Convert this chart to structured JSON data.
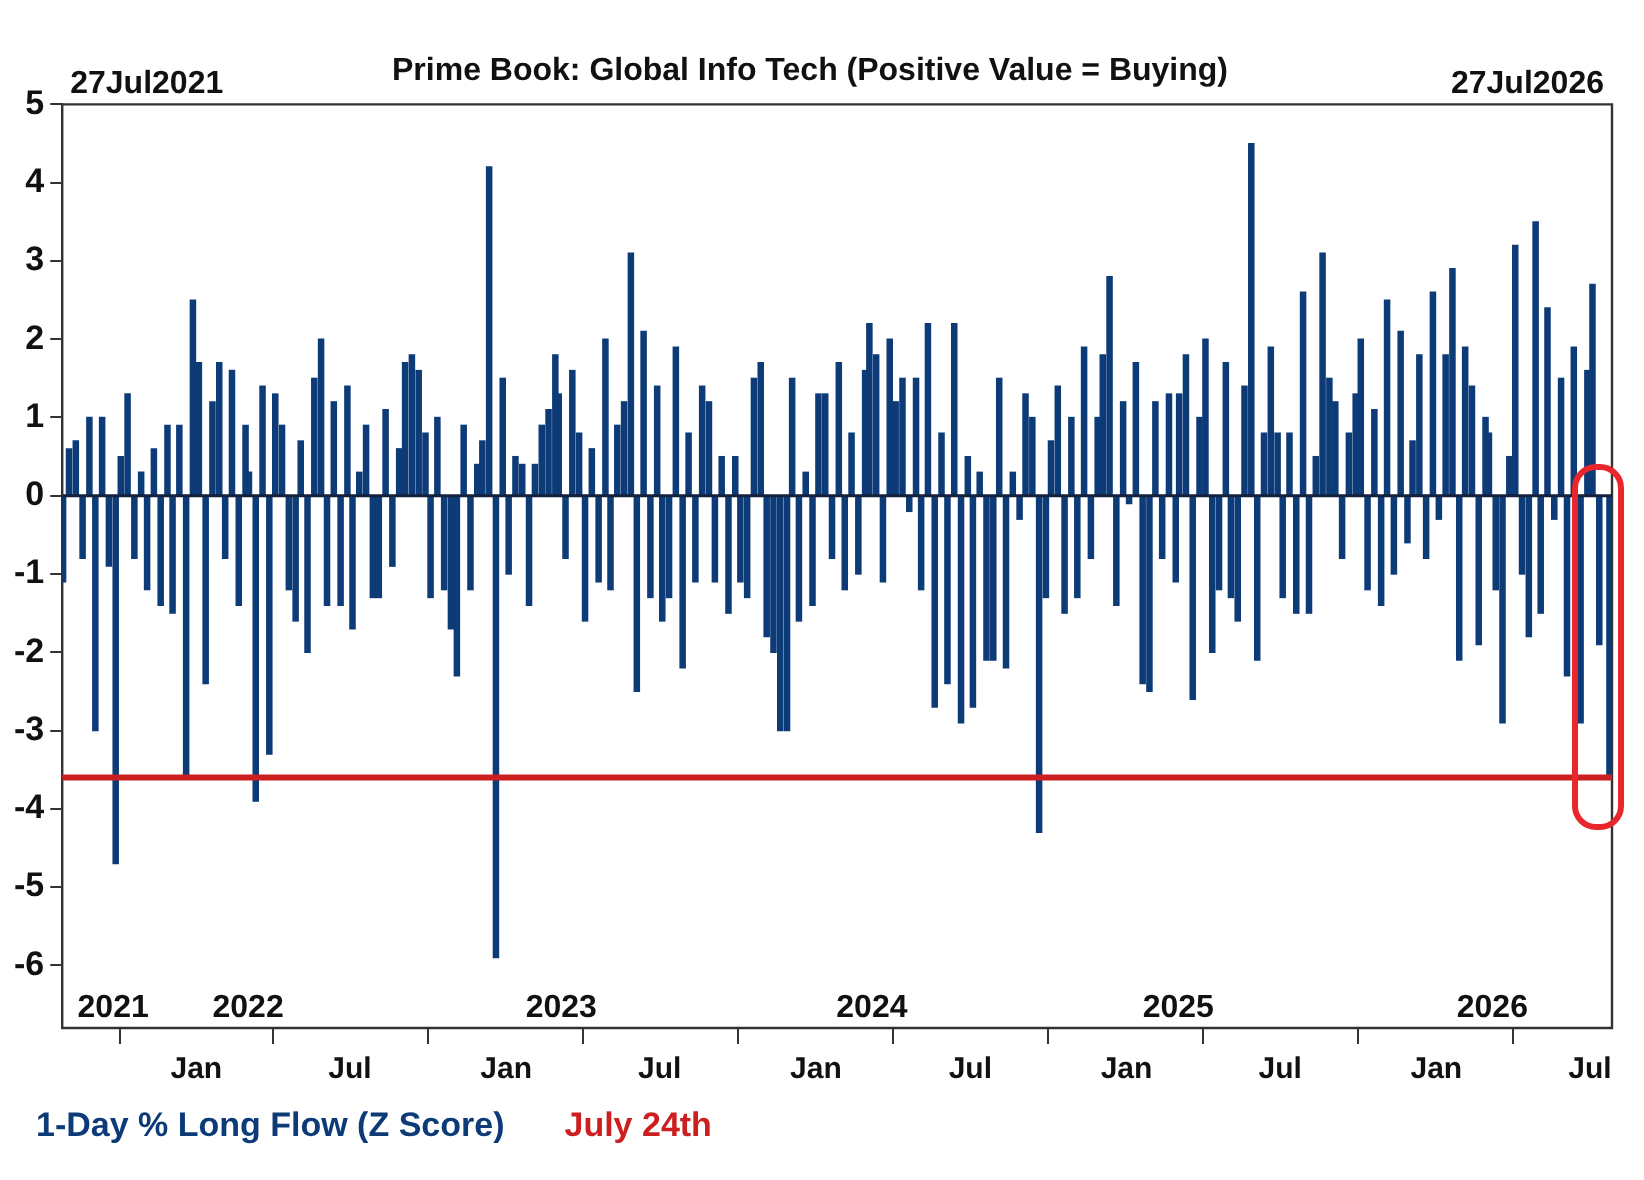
{
  "chart_data": {
    "type": "bar",
    "title": "Prime Book: Global Info Tech (Positive Value = Buying)",
    "x": [
      "2021-07-28",
      "2021-08-04",
      "2021-08-12",
      "2021-08-20",
      "2021-08-28",
      "2021-09-04",
      "2021-09-12",
      "2021-09-20",
      "2021-09-28",
      "2021-10-04",
      "2021-10-12",
      "2021-10-20",
      "2021-10-28",
      "2021-11-04",
      "2021-11-12",
      "2021-11-20",
      "2021-11-28",
      "2021-12-04",
      "2021-12-12",
      "2021-12-20",
      "2021-12-28",
      "2022-01-04",
      "2022-01-12",
      "2022-01-20",
      "2022-01-28",
      "2022-02-04",
      "2022-02-12",
      "2022-02-20",
      "2022-02-28",
      "2022-03-04",
      "2022-03-12",
      "2022-03-20",
      "2022-03-28",
      "2022-04-04",
      "2022-04-12",
      "2022-04-20",
      "2022-04-28",
      "2022-05-04",
      "2022-05-12",
      "2022-05-20",
      "2022-05-28",
      "2022-06-04",
      "2022-06-12",
      "2022-06-20",
      "2022-06-28",
      "2022-07-04",
      "2022-07-12",
      "2022-07-20",
      "2022-07-28",
      "2022-08-04",
      "2022-08-12",
      "2022-08-20",
      "2022-08-28",
      "2022-09-04",
      "2022-09-12",
      "2022-09-20",
      "2022-09-28",
      "2022-10-04",
      "2022-10-12",
      "2022-10-20",
      "2022-10-28",
      "2022-11-04",
      "2022-11-12",
      "2022-11-20",
      "2022-11-28",
      "2022-12-04",
      "2022-12-12",
      "2022-12-20",
      "2022-12-28",
      "2023-01-04",
      "2023-01-12",
      "2023-01-20",
      "2023-01-28",
      "2023-02-04",
      "2023-02-12",
      "2023-02-20",
      "2023-02-28",
      "2023-03-04",
      "2023-03-12",
      "2023-03-20",
      "2023-03-28",
      "2023-04-04",
      "2023-04-12",
      "2023-04-20",
      "2023-04-28",
      "2023-05-04",
      "2023-05-12",
      "2023-05-20",
      "2023-05-28",
      "2023-06-04",
      "2023-06-12",
      "2023-06-20",
      "2023-06-28",
      "2023-07-04",
      "2023-07-12",
      "2023-07-20",
      "2023-07-28",
      "2023-08-04",
      "2023-08-12",
      "2023-08-20",
      "2023-08-28",
      "2023-09-04",
      "2023-09-12",
      "2023-09-20",
      "2023-09-28",
      "2023-10-04",
      "2023-10-12",
      "2023-10-20",
      "2023-10-28",
      "2023-11-04",
      "2023-11-12",
      "2023-11-20",
      "2023-11-28",
      "2023-12-04",
      "2023-12-12",
      "2023-12-20",
      "2023-12-28",
      "2024-01-04",
      "2024-01-12",
      "2024-01-20",
      "2024-01-28",
      "2024-02-04",
      "2024-02-12",
      "2024-02-20",
      "2024-02-28",
      "2024-03-04",
      "2024-03-12",
      "2024-03-20",
      "2024-03-28",
      "2024-04-04",
      "2024-04-12",
      "2024-04-20",
      "2024-04-28",
      "2024-05-04",
      "2024-05-12",
      "2024-05-20",
      "2024-05-28",
      "2024-06-04",
      "2024-06-12",
      "2024-06-20",
      "2024-06-28",
      "2024-07-04",
      "2024-07-12",
      "2024-07-20",
      "2024-07-28",
      "2024-08-04",
      "2024-08-12",
      "2024-08-20",
      "2024-08-28",
      "2024-09-04",
      "2024-09-12",
      "2024-09-20",
      "2024-09-28",
      "2024-10-04",
      "2024-10-12",
      "2024-10-20",
      "2024-10-28",
      "2024-11-04",
      "2024-11-12",
      "2024-11-20",
      "2024-11-28",
      "2024-12-04",
      "2024-12-12",
      "2024-12-20",
      "2024-12-28",
      "2025-01-04",
      "2025-01-12",
      "2025-01-20",
      "2025-01-28",
      "2025-02-04",
      "2025-02-12",
      "2025-02-20",
      "2025-02-28",
      "2025-03-04",
      "2025-03-12",
      "2025-03-20",
      "2025-03-28",
      "2025-04-04",
      "2025-04-12",
      "2025-04-20",
      "2025-04-28",
      "2025-05-04",
      "2025-05-12",
      "2025-05-20",
      "2025-05-28",
      "2025-06-04",
      "2025-06-12",
      "2025-06-20",
      "2025-06-28",
      "2025-07-04",
      "2025-07-12",
      "2025-07-20",
      "2025-07-28",
      "2025-08-04",
      "2025-08-12",
      "2025-08-20",
      "2025-08-28",
      "2025-09-04",
      "2025-09-12",
      "2025-09-20",
      "2025-09-28",
      "2025-10-04",
      "2025-10-12",
      "2025-10-20",
      "2025-10-28",
      "2025-11-04",
      "2025-11-12",
      "2025-11-20",
      "2025-11-28",
      "2025-12-04",
      "2025-12-12",
      "2025-12-20",
      "2025-12-28",
      "2026-01-04",
      "2026-01-12",
      "2026-01-20",
      "2026-01-28",
      "2026-02-04",
      "2026-02-12",
      "2026-02-20",
      "2026-02-28",
      "2026-03-04",
      "2026-03-12",
      "2026-03-20",
      "2026-03-28",
      "2026-04-04",
      "2026-04-12",
      "2026-04-20",
      "2026-04-28",
      "2026-05-04",
      "2026-05-12",
      "2026-05-20",
      "2026-05-28",
      "2026-06-04",
      "2026-06-12",
      "2026-06-20",
      "2026-06-28",
      "2026-07-04",
      "2026-07-12",
      "2026-07-24"
    ],
    "series": [
      {
        "name": "1-Day % Long Flow (Z Score)",
        "color": "#0d3b78",
        "values": [
          -1.1,
          0.6,
          0.7,
          -0.8,
          1.0,
          -3.0,
          1.0,
          -0.9,
          -4.7,
          0.5,
          1.3,
          -0.8,
          0.3,
          -1.2,
          0.6,
          -1.4,
          0.9,
          -1.5,
          0.9,
          -3.6,
          2.5,
          1.7,
          -2.4,
          1.2,
          1.7,
          -0.8,
          1.6,
          -1.4,
          0.9,
          0.3,
          -3.9,
          1.4,
          -3.3,
          1.3,
          0.9,
          -1.2,
          -1.6,
          0.7,
          -2.0,
          1.5,
          2.0,
          -1.4,
          1.2,
          -1.4,
          1.4,
          -1.7,
          0.3,
          0.9,
          -1.3,
          -1.3,
          1.1,
          -0.9,
          0.6,
          1.7,
          1.8,
          1.6,
          0.8,
          -1.3,
          1.0,
          -1.2,
          -1.7,
          -2.3,
          0.9,
          -1.2,
          0.4,
          0.7,
          4.2,
          -5.9,
          1.5,
          -1.0,
          0.5,
          0.4,
          -1.4,
          0.4,
          0.9,
          1.1,
          1.8,
          1.3,
          -0.8,
          1.6,
          0.8,
          -1.6,
          0.6,
          -1.1,
          2.0,
          -1.2,
          0.9,
          1.2,
          3.1,
          -2.5,
          2.1,
          -1.3,
          1.4,
          -1.6,
          -1.3,
          1.9,
          -2.2,
          0.8,
          -1.1,
          1.4,
          1.2,
          -1.1,
          0.5,
          -1.5,
          0.5,
          -1.1,
          -1.3,
          1.5,
          1.7,
          -1.8,
          -2.0,
          -3.0,
          -3.0,
          1.5,
          -1.6,
          0.3,
          -1.4,
          1.3,
          1.3,
          -0.8,
          1.7,
          -1.2,
          0.8,
          -1.0,
          1.6,
          2.2,
          1.8,
          -1.1,
          2.0,
          1.2,
          1.5,
          -0.2,
          1.5,
          -1.2,
          2.2,
          -2.7,
          0.8,
          -2.4,
          2.2,
          -2.9,
          0.5,
          -2.7,
          0.3,
          -2.1,
          -2.1,
          1.5,
          -2.2,
          0.3,
          -0.3,
          1.3,
          1.0,
          -4.3,
          -1.3,
          0.7,
          1.4,
          -1.5,
          1.0,
          -1.3,
          1.9,
          -0.8,
          1.0,
          1.8,
          2.8,
          -1.4,
          1.2,
          -0.1,
          1.7,
          -2.4,
          -2.5,
          1.2,
          -0.8,
          1.3,
          -1.1,
          1.3,
          1.8,
          -2.6,
          1.0,
          2.0,
          -2.0,
          -1.2,
          1.7,
          -1.3,
          -1.6,
          1.4,
          4.5,
          -2.1,
          0.8,
          1.9,
          0.8,
          -1.3,
          0.8,
          -1.5,
          2.6,
          -1.5,
          0.5,
          3.1,
          1.5,
          1.2,
          -0.8,
          0.8,
          1.3,
          2.0,
          -1.2,
          1.1,
          -1.4,
          2.5,
          -1.0,
          2.1,
          -0.6,
          0.7,
          1.8,
          -0.8,
          2.6,
          -0.3,
          1.8,
          2.9,
          -2.1,
          1.9,
          1.4,
          -1.9,
          1.0,
          0.8,
          -1.2,
          -2.9,
          0.5,
          3.2,
          -1.0,
          -1.8,
          3.5,
          -1.5,
          2.4,
          -0.3,
          1.5,
          -2.3,
          1.9,
          -2.9,
          1.6,
          2.7,
          -1.9,
          -3.6
        ]
      }
    ],
    "xlim": [
      "2021-07-27",
      "2026-07-27"
    ],
    "xticks": [
      {
        "value": "2022-01-01",
        "label": "Jan"
      },
      {
        "value": "2022-07-01",
        "label": "Jul"
      },
      {
        "value": "2023-01-01",
        "label": "Jan"
      },
      {
        "value": "2023-07-01",
        "label": "Jul"
      },
      {
        "value": "2024-01-01",
        "label": "Jan"
      },
      {
        "value": "2024-07-01",
        "label": "Jul"
      },
      {
        "value": "2025-01-01",
        "label": "Jan"
      },
      {
        "value": "2025-07-01",
        "label": "Jul"
      },
      {
        "value": "2026-01-01",
        "label": "Jan"
      },
      {
        "value": "2026-07-01",
        "label": "Jul"
      }
    ],
    "ylim": [
      -6.8,
      5
    ],
    "yticks": [
      -6,
      -5,
      -4,
      -3,
      -2,
      -1,
      0,
      1,
      2,
      3,
      4,
      5
    ],
    "ref_lines": [
      {
        "axis": "y",
        "value": 0,
        "color": "#14213d"
      },
      {
        "axis": "y",
        "value": -3.6,
        "label": "July 24th",
        "color": "#cc1f1f"
      }
    ],
    "annotations": [
      "27Jul2021",
      "27Jul2026"
    ],
    "x2lim": [
      "2021-07-27",
      "2026-07-27"
    ],
    "x2ticks": [
      {
        "value": "2021-09-25",
        "label": "2021"
      },
      {
        "value": "2022-03-03",
        "label": "2022"
      },
      {
        "value": "2023-03-07",
        "label": "2023"
      },
      {
        "value": "2024-03-07",
        "label": "2024"
      },
      {
        "value": "2025-03-03",
        "label": "2025"
      },
      {
        "value": "2026-03-08",
        "label": "2026"
      }
    ],
    "legend": "bottom left"
  }
}
